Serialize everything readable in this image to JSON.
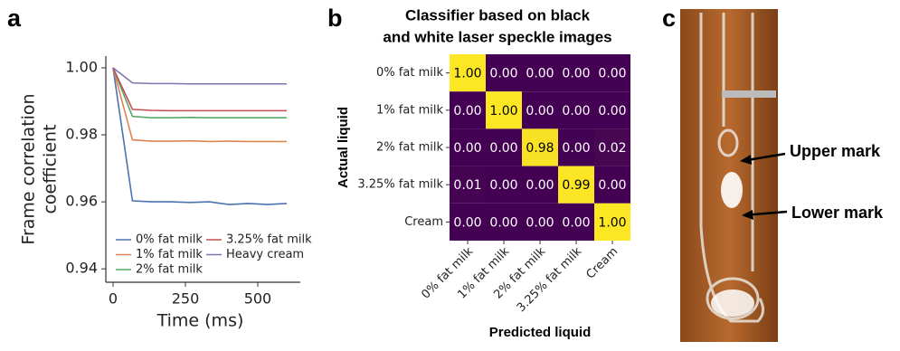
{
  "chart_data": [
    {
      "type": "line",
      "label": "a",
      "xlabel": "Time (ms)",
      "ylabel": [
        "Frame correlation",
        "coefficient"
      ],
      "x": [
        0,
        67,
        133,
        200,
        267,
        333,
        400,
        467,
        533,
        600
      ],
      "series": [
        {
          "name": "0% fat milk",
          "color": "#4c72b0",
          "values": [
            1.0,
            0.9603,
            0.96,
            0.96,
            0.9598,
            0.96,
            0.9592,
            0.9595,
            0.9592,
            0.9595
          ]
        },
        {
          "name": "1% fat milk",
          "color": "#dd8452",
          "values": [
            1.0,
            0.9785,
            0.9781,
            0.9781,
            0.9782,
            0.978,
            0.9781,
            0.978,
            0.978,
            0.978
          ]
        },
        {
          "name": "2% fat milk",
          "color": "#55a868",
          "values": [
            1.0,
            0.9855,
            0.9851,
            0.9851,
            0.9852,
            0.9851,
            0.9851,
            0.9851,
            0.9851,
            0.9851
          ]
        },
        {
          "name": "3.25% fat milk",
          "color": "#c44e52",
          "values": [
            1.0,
            0.9876,
            0.9873,
            0.9872,
            0.9872,
            0.9872,
            0.9872,
            0.9872,
            0.9872,
            0.9872
          ]
        },
        {
          "name": "Heavy cream",
          "color": "#8172b3",
          "values": [
            1.0,
            0.9955,
            0.9953,
            0.9953,
            0.9952,
            0.9952,
            0.9952,
            0.9952,
            0.9952,
            0.9952
          ]
        }
      ],
      "xlim": [
        -25,
        647
      ],
      "xticks": [
        0,
        250,
        500
      ],
      "ylim": [
        0.936,
        1.0035
      ],
      "yticks": [
        0.94,
        0.96,
        0.98,
        {
          "value": 1,
          "label": "1.00"
        }
      ],
      "legend": "lower left"
    },
    {
      "type": "heatmap",
      "label": "b",
      "title": [
        "Classifier based on black",
        "and white laser speckle images"
      ],
      "xlabel": "Predicted liquid",
      "ylabel": "Actual liquid",
      "categories": [
        "0% fat milk",
        "1% fat milk",
        "2% fat milk",
        "3.25% fat milk",
        "Cream"
      ],
      "values": [
        [
          1,
          0,
          0,
          0,
          0
        ],
        [
          0,
          1,
          0,
          0,
          0
        ],
        [
          0,
          0,
          0.98,
          0,
          0.02
        ],
        [
          0.01,
          0,
          0,
          0.99,
          0
        ],
        [
          0,
          0,
          0,
          0,
          1
        ]
      ],
      "value_labels": [
        [
          "1.00",
          "0.00",
          "0.00",
          "0.00",
          "0.00"
        ],
        [
          "0.00",
          "1.00",
          "0.00",
          "0.00",
          "0.00"
        ],
        [
          "0.00",
          "0.00",
          "0.98",
          "0.00",
          "0.02"
        ],
        [
          "0.01",
          "0.00",
          "0.00",
          "0.99",
          "0.00"
        ],
        [
          "0.00",
          "0.00",
          "0.00",
          "0.00",
          "1.00"
        ]
      ],
      "colors": [
        "#440154",
        "#fde725"
      ]
    }
  ],
  "image": {
    "label": "c",
    "annotations": [
      "Upper mark",
      "Lower mark"
    ]
  }
}
